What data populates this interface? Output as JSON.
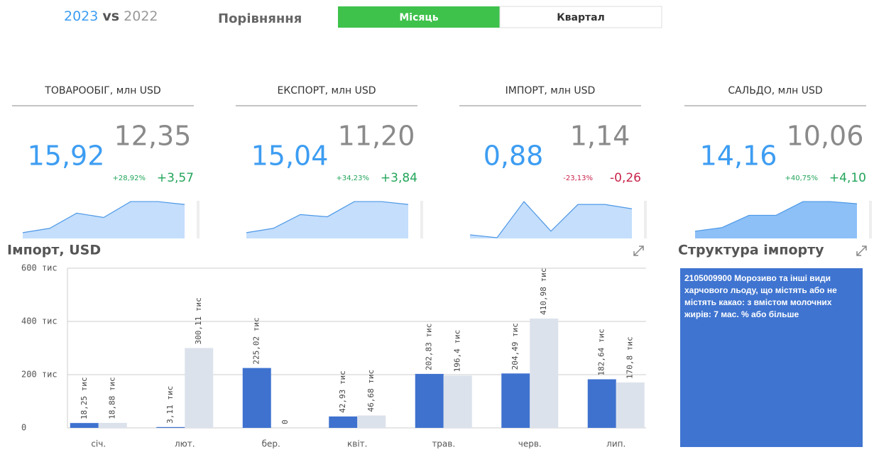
{
  "header": {
    "year_current": "2023",
    "vs": "vs",
    "year_previous": "2022",
    "compare_label": "Порівняння",
    "toggle": [
      "Місяць",
      "Квартал"
    ]
  },
  "kpis": [
    {
      "title": "ТОВАРООБІГ, млн USD",
      "current": "15,92",
      "previous": "12,35",
      "change_pct": "+28,92%",
      "change_abs": "+3,57",
      "change_color": "#22a55a",
      "sparkline": [
        8,
        14,
        35,
        29,
        51,
        51,
        47
      ]
    },
    {
      "title": "ЕКСПОРТ, млн USD",
      "current": "15,04",
      "previous": "11,20",
      "change_pct": "+34,23%",
      "change_abs": "+3,84",
      "change_color": "#22a55a",
      "sparkline": [
        8,
        14,
        33,
        30,
        51,
        51,
        47
      ]
    },
    {
      "title": "ІМПОРТ, млн USD",
      "current": "0,88",
      "previous": "1,14",
      "change_pct": "-23,13%",
      "change_abs": "-0,26",
      "change_color": "#c8234a",
      "sparkline": [
        5,
        1,
        51,
        10,
        47,
        47,
        41
      ]
    },
    {
      "title": "САЛЬДО, млн USD",
      "current": "14,16",
      "previous": "10,06",
      "change_pct": "+40,75%",
      "change_abs": "+4,10",
      "change_color": "#22a55a",
      "sparkline": [
        10,
        15,
        32,
        32,
        51,
        51,
        48
      ]
    }
  ],
  "spark_ylim": [
    0,
    55
  ],
  "chart_data": {
    "type": "bar",
    "title": "Імпорт, USD",
    "categories": [
      "січ.",
      "лют.",
      "бер.",
      "квіт.",
      "трав.",
      "черв.",
      "лип."
    ],
    "series": [
      {
        "name": "2023",
        "color": "#3f72cf",
        "values": [
          18250,
          3110,
          225020,
          42930,
          202830,
          204490,
          182640
        ],
        "value_labels": [
          "18,25 тис",
          "3,11 тис",
          "225,02 тис",
          "42,93 тис",
          "202,83 тис",
          "204,49 тис",
          "182,64 тис"
        ]
      },
      {
        "name": "2022",
        "color": "#dce2ec",
        "values": [
          18880,
          300110,
          0,
          46680,
          196400,
          410980,
          170800
        ],
        "value_labels": [
          "18,88 тис",
          "300,11 тис",
          "0",
          "46,68 тис",
          "196,4 тис",
          "410,98 тис",
          "170,8 тис"
        ]
      }
    ],
    "ylim": [
      0,
      600000
    ],
    "yticks": [
      0,
      {
        "value": 200000,
        "label": "200 тис"
      },
      {
        "value": 400000,
        "label": "400 тис"
      },
      {
        "value": 600000,
        "label": "600 тис"
      }
    ],
    "grid": true
  },
  "structure": {
    "title": "Структура імпорту",
    "text": "2105009900 Морозиво та інші види харчового льоду, що містять або не містять какао: з вмістом молочних жирів: 7 мас. % або більше"
  }
}
